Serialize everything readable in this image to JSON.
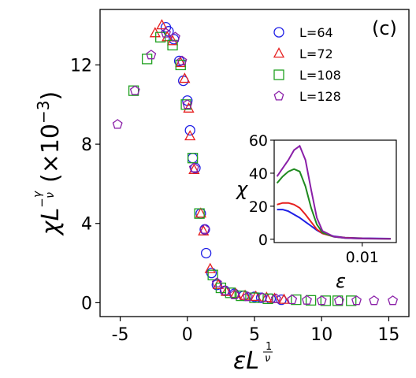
{
  "panel_label": "(c)",
  "chart_data": [
    {
      "type": "scatter",
      "title": "",
      "xlabel_main": "εL",
      "xlabel_sup": "1",
      "xlabel_sup_den": "ν",
      "ylabel_main": "χL",
      "ylabel_exp_num": "γ",
      "ylabel_exp_den": "ν",
      "ylabel_unit": "(×10",
      "ylabel_unit_exp": "−3",
      "ylabel_unit_close": ")",
      "xlim": [
        -6.5,
        16.5
      ],
      "ylim": [
        -0.7,
        14.8
      ],
      "xticks": [
        -5,
        0,
        5,
        10,
        15
      ],
      "xtick_labels": [
        "-5",
        "0",
        "5",
        "10",
        "15"
      ],
      "yticks": [
        0,
        4,
        8,
        12
      ],
      "ytick_labels": [
        "0",
        "4",
        "8",
        "12"
      ],
      "grid": false,
      "legend_position": "top-right",
      "series": [
        {
          "name": "L=64",
          "marker": "circle",
          "color": "#1f1fe6",
          "points": [
            [
              -1.6,
              13.9
            ],
            [
              -1.4,
              13.7
            ],
            [
              -1.0,
              13.3
            ],
            [
              -0.6,
              12.2
            ],
            [
              -0.3,
              11.2
            ],
            [
              0.0,
              10.2
            ],
            [
              0.2,
              8.7
            ],
            [
              0.4,
              7.3
            ],
            [
              0.6,
              6.8
            ],
            [
              1.0,
              4.5
            ],
            [
              1.3,
              3.7
            ],
            [
              1.4,
              2.5
            ],
            [
              1.8,
              1.5
            ],
            [
              2.2,
              0.9
            ],
            [
              2.8,
              0.6
            ],
            [
              3.5,
              0.45
            ],
            [
              4.2,
              0.35
            ],
            [
              5.0,
              0.3
            ],
            [
              5.5,
              0.25
            ],
            [
              6.2,
              0.2
            ],
            [
              7.0,
              0.15
            ]
          ]
        },
        {
          "name": "L=72",
          "marker": "triangle",
          "color": "#e61f1f",
          "points": [
            [
              -2.4,
              13.6
            ],
            [
              -1.9,
              14.0
            ],
            [
              -1.5,
              13.4
            ],
            [
              -1.1,
              13.2
            ],
            [
              -0.5,
              12.1
            ],
            [
              -0.2,
              11.3
            ],
            [
              0.1,
              9.8
            ],
            [
              0.2,
              8.4
            ],
            [
              0.5,
              6.7
            ],
            [
              1.0,
              4.5
            ],
            [
              1.2,
              3.6
            ],
            [
              1.7,
              1.7
            ],
            [
              2.3,
              0.9
            ],
            [
              2.9,
              0.55
            ],
            [
              3.6,
              0.45
            ],
            [
              4.3,
              0.35
            ],
            [
              5.1,
              0.3
            ],
            [
              5.9,
              0.25
            ],
            [
              6.5,
              0.2
            ],
            [
              7.2,
              0.15
            ]
          ]
        },
        {
          "name": "L=108",
          "marker": "square",
          "color": "#1fa01f",
          "points": [
            [
              -4.0,
              10.7
            ],
            [
              -3.0,
              12.3
            ],
            [
              -2.0,
              13.4
            ],
            [
              -1.1,
              13.0
            ],
            [
              -0.5,
              12.0
            ],
            [
              -0.1,
              10.0
            ],
            [
              0.4,
              7.3
            ],
            [
              0.9,
              4.5
            ],
            [
              1.9,
              1.4
            ],
            [
              2.5,
              0.75
            ],
            [
              3.2,
              0.5
            ],
            [
              4.0,
              0.35
            ],
            [
              5.0,
              0.25
            ],
            [
              6.0,
              0.2
            ],
            [
              8.1,
              0.15
            ],
            [
              9.2,
              0.12
            ],
            [
              10.3,
              0.1
            ],
            [
              11.2,
              0.1
            ],
            [
              12.2,
              0.1
            ]
          ]
        },
        {
          "name": "L=128",
          "marker": "pentagon",
          "color": "#8a1fa8",
          "points": [
            [
              -5.2,
              9.0
            ],
            [
              -3.9,
              10.7
            ],
            [
              -2.7,
              12.5
            ],
            [
              -1.6,
              13.6
            ],
            [
              -0.9,
              13.4
            ],
            [
              -0.4,
              12.2
            ],
            [
              0.0,
              10.0
            ],
            [
              0.5,
              6.8
            ],
            [
              1.3,
              3.7
            ],
            [
              2.2,
              1.0
            ],
            [
              2.8,
              0.6
            ],
            [
              3.5,
              0.4
            ],
            [
              4.5,
              0.3
            ],
            [
              5.6,
              0.25
            ],
            [
              6.6,
              0.2
            ],
            [
              7.8,
              0.15
            ],
            [
              8.9,
              0.12
            ],
            [
              10.0,
              0.1
            ],
            [
              11.3,
              0.1
            ],
            [
              12.6,
              0.1
            ],
            [
              13.9,
              0.1
            ],
            [
              15.3,
              0.1
            ]
          ]
        }
      ]
    },
    {
      "type": "line",
      "title": "",
      "xlabel": "ε",
      "ylabel": "χ",
      "xlim": [
        -0.0055,
        0.016
      ],
      "ylim": [
        -2,
        60
      ],
      "xticks": [
        0.01
      ],
      "xtick_labels": [
        "0.01"
      ],
      "yticks": [
        0,
        20,
        40,
        60
      ],
      "ytick_labels": [
        "0",
        "20",
        "40",
        "60"
      ],
      "grid": false,
      "series": [
        {
          "name": "L=64",
          "color": "#1f1fe6",
          "x": [
            -0.005,
            -0.004,
            -0.003,
            -0.002,
            -0.001,
            0.0,
            0.001,
            0.002,
            0.003,
            0.005,
            0.007,
            0.01,
            0.015
          ],
          "y": [
            18,
            18,
            17,
            15,
            13,
            10.5,
            8,
            5.5,
            3.5,
            1.8,
            1.0,
            0.6,
            0.4
          ]
        },
        {
          "name": "L=72",
          "color": "#e61f1f",
          "x": [
            -0.005,
            -0.004,
            -0.003,
            -0.002,
            -0.001,
            0.0,
            0.001,
            0.002,
            0.003,
            0.005,
            0.007,
            0.01,
            0.015
          ],
          "y": [
            21,
            22,
            22,
            21,
            19,
            15,
            10.5,
            6,
            3.5,
            1.6,
            0.9,
            0.5,
            0.3
          ]
        },
        {
          "name": "L=108",
          "color": "#1f8a1f",
          "x": [
            -0.005,
            -0.004,
            -0.003,
            -0.002,
            -0.001,
            0.0,
            0.001,
            0.002,
            0.003,
            0.005,
            0.007,
            0.01,
            0.015
          ],
          "y": [
            34,
            38,
            41,
            42.5,
            41,
            32,
            19,
            9,
            4,
            1.5,
            0.7,
            0.4,
            0.3
          ]
        },
        {
          "name": "L=128",
          "color": "#8a1fa8",
          "x": [
            -0.005,
            -0.004,
            -0.003,
            -0.002,
            -0.001,
            0.0,
            0.001,
            0.002,
            0.003,
            0.005,
            0.007,
            0.01,
            0.015
          ],
          "y": [
            38,
            43,
            48,
            54,
            56.5,
            48,
            30,
            13,
            5,
            1.6,
            0.7,
            0.4,
            0.3
          ]
        }
      ]
    }
  ]
}
